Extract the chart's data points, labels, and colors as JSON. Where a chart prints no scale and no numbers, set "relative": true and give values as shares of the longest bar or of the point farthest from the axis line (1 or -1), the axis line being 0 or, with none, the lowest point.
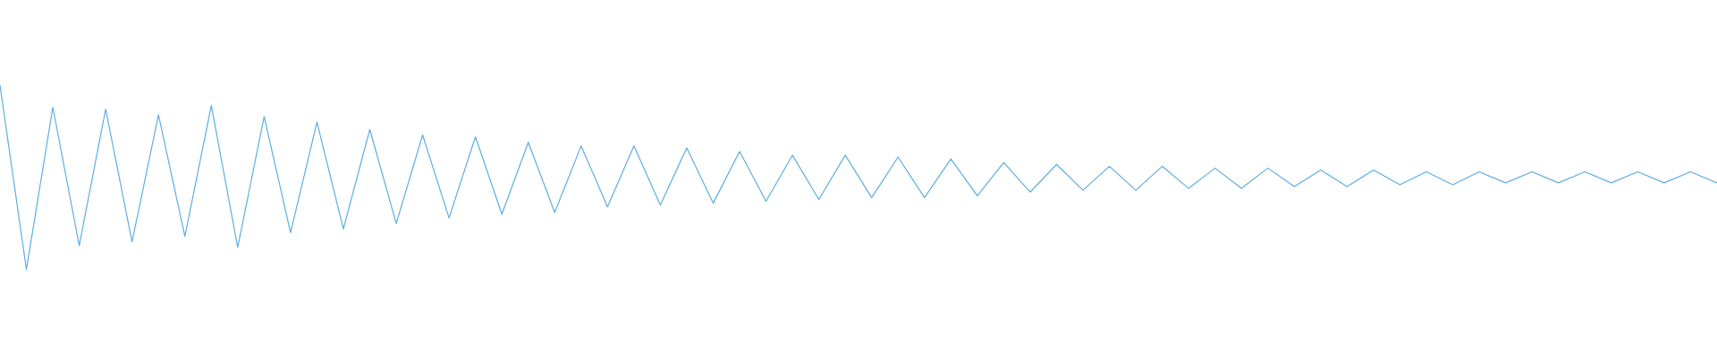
{
  "chart_data": {
    "type": "line",
    "relative": true,
    "line_style": "solid",
    "categories": [
      null,
      null,
      null,
      null,
      null,
      null,
      null,
      null,
      null,
      null,
      null,
      null,
      null,
      null,
      null,
      null,
      null,
      null,
      null,
      null,
      null,
      null,
      null,
      null,
      null,
      null,
      null,
      null,
      null,
      null,
      null,
      null,
      null,
      null,
      null,
      null,
      null,
      null,
      null,
      null,
      null,
      null,
      null,
      null,
      null,
      null,
      null,
      null,
      null,
      null,
      null,
      null,
      null,
      null,
      null,
      null,
      null,
      null,
      null,
      null,
      null,
      null,
      null,
      null,
      null,
      null
    ],
    "series": [
      {
        "color": "#5dade2",
        "values": [
          1.0,
          0,
          0.88,
          0.13,
          0.87,
          0.15,
          0.84,
          0.18,
          0.89,
          0.12,
          0.83,
          0.2,
          0.8,
          0.22,
          0.76,
          0.25,
          0.73,
          0.28,
          0.72,
          0.3,
          0.69,
          0.31,
          0.67,
          0.34,
          0.67,
          0.35,
          0.66,
          0.36,
          0.64,
          0.37,
          0.62,
          0.38,
          0.62,
          0.39,
          0.61,
          0.39,
          0.6,
          0.4,
          0.58,
          0.42,
          0.57,
          0.43,
          0.56,
          0.43,
          0.56,
          0.44,
          0.55,
          0.44,
          0.55,
          0.45,
          0.54,
          0.45,
          0.54,
          0.46,
          0.53,
          0.46,
          0.53,
          0.47,
          0.53,
          0.47,
          0.53,
          0.47,
          0.53,
          0.47,
          0.53,
          0.47
        ]
      }
    ]
  }
}
